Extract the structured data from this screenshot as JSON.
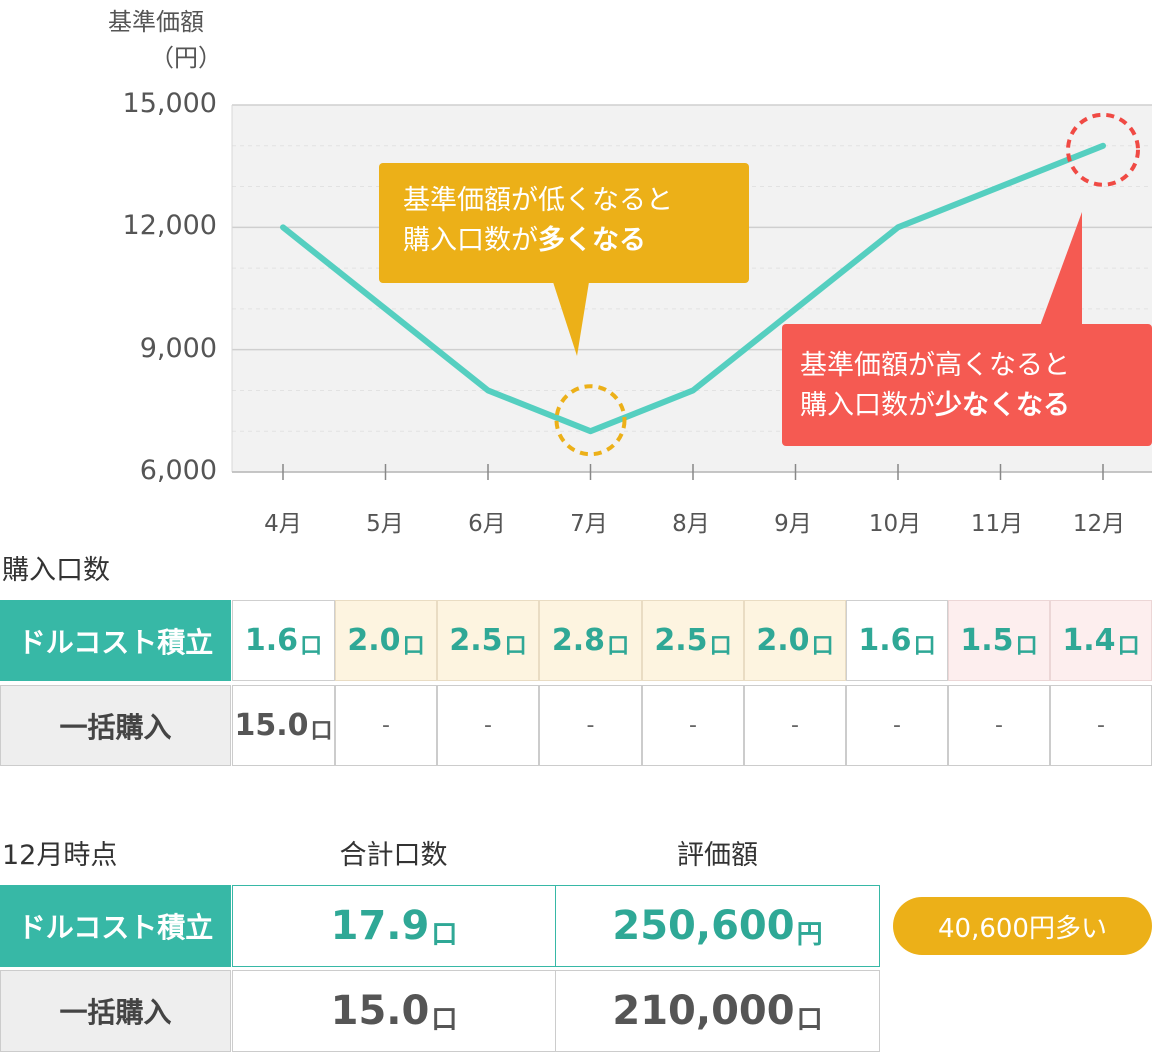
{
  "chart_data": {
    "type": "line",
    "ylabel": "基準価額",
    "yunit": "（円）",
    "categories": [
      "4月",
      "5月",
      "6月",
      "7月",
      "8月",
      "9月",
      "10月",
      "11月",
      "12月"
    ],
    "values": [
      12000,
      10000,
      8000,
      7000,
      8000,
      10000,
      12000,
      13000,
      14000
    ],
    "ylim": [
      6000,
      15000
    ],
    "yticks": [
      "15,000",
      "12,000",
      "9,000",
      "6,000"
    ],
    "line_color": "#55cfc0",
    "highlight_low": "7月",
    "highlight_high": "12月",
    "grid": true
  },
  "callouts": {
    "low": {
      "line1": "基準価額が低くなると",
      "line2_prefix": "購入口数が",
      "line2_bold": "多くなる",
      "color": "#ecb018"
    },
    "high": {
      "line1": "基準価額が高くなると",
      "line2_prefix": "購入口数が",
      "line2_bold": "少なくなる",
      "color": "#f55a52"
    }
  },
  "units_table": {
    "title": "購入口数",
    "rows": [
      {
        "label": "ドルコスト積立",
        "values": [
          "1.6",
          "2.0",
          "2.5",
          "2.8",
          "2.5",
          "2.0",
          "1.6",
          "1.5",
          "1.4"
        ],
        "unit": "口"
      },
      {
        "label": "一括購入",
        "values": [
          "15.0",
          "-",
          "-",
          "-",
          "-",
          "-",
          "-",
          "-",
          "-"
        ],
        "unit": "口"
      }
    ]
  },
  "summary": {
    "title": "12月時点",
    "col_units": "合計口数",
    "col_value": "評価額",
    "rows": [
      {
        "label": "ドルコスト積立",
        "units": "17.9",
        "units_suffix": "口",
        "value": "250,600",
        "value_suffix": "円"
      },
      {
        "label": "一括購入",
        "units": "15.0",
        "units_suffix": "口",
        "value": "210,000",
        "value_suffix": "口"
      }
    ],
    "badge": "40,600円多い"
  }
}
